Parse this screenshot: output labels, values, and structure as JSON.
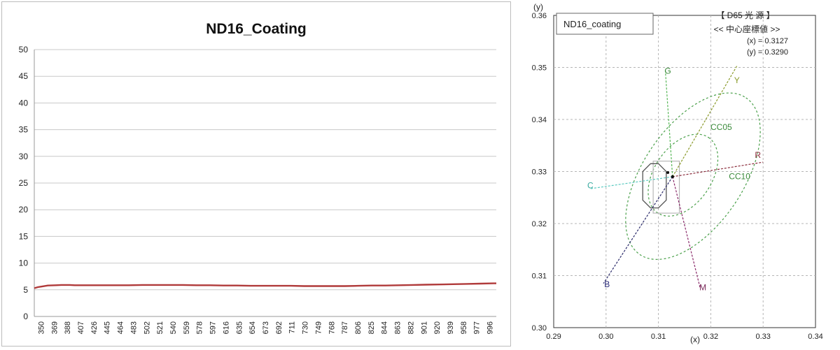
{
  "chart_data": [
    {
      "type": "line",
      "title": "ND16_Coating",
      "xlabel": "",
      "ylabel": "",
      "ylim": [
        0,
        50
      ],
      "yticks": [
        0,
        5,
        10,
        15,
        20,
        25,
        30,
        35,
        40,
        45,
        50
      ],
      "xticks": [
        "350",
        "369",
        "388",
        "407",
        "426",
        "445",
        "464",
        "483",
        "502",
        "521",
        "540",
        "559",
        "578",
        "597",
        "616",
        "635",
        "654",
        "673",
        "692",
        "711",
        "730",
        "749",
        "768",
        "787",
        "806",
        "825",
        "844",
        "863",
        "882",
        "901",
        "920",
        "939",
        "958",
        "977",
        "996"
      ],
      "grid": true,
      "series": [
        {
          "name": "",
          "color": "#b03a3a",
          "x": [
            350,
            355,
            360,
            369,
            380,
            388,
            400,
            407,
            426,
            445,
            464,
            483,
            502,
            521,
            540,
            559,
            578,
            597,
            616,
            635,
            654,
            673,
            692,
            711,
            730,
            749,
            768,
            787,
            806,
            825,
            844,
            863,
            882,
            901,
            920,
            939,
            958,
            977,
            996,
            1000
          ],
          "y": [
            5.3,
            5.5,
            5.6,
            5.8,
            5.85,
            5.9,
            5.9,
            5.85,
            5.85,
            5.85,
            5.85,
            5.85,
            5.9,
            5.9,
            5.9,
            5.9,
            5.85,
            5.85,
            5.8,
            5.8,
            5.75,
            5.75,
            5.75,
            5.75,
            5.7,
            5.7,
            5.7,
            5.7,
            5.75,
            5.8,
            5.8,
            5.85,
            5.9,
            5.95,
            6.0,
            6.05,
            6.1,
            6.15,
            6.2,
            6.2
          ]
        }
      ]
    },
    {
      "type": "scatter",
      "title": "",
      "legend_label": "ND16_coating",
      "xlabel": "(x)",
      "ylabel": "(y)",
      "xlim": [
        0.29,
        0.34
      ],
      "ylim": [
        0.3,
        0.36
      ],
      "xticks": [
        "0.29",
        "0.30",
        "0.31",
        "0.32",
        "0.33",
        "0.34"
      ],
      "yticks": [
        "0.30",
        "0.31",
        "0.32",
        "0.33",
        "0.34",
        "0.35",
        "0.36"
      ],
      "grid": true,
      "annotation": {
        "line1": "【 D65 光 源 】",
        "line2": "<< 中心座標値 >>",
        "line3": "(x) = 0.3127",
        "line4": "(y) = 0.3290"
      },
      "center": [
        0.3127,
        0.329
      ],
      "measured_point": [
        0.3118,
        0.3298
      ],
      "axes_labels": [
        {
          "text": "G",
          "x": 0.3118,
          "y": 0.3488,
          "color": "#3a8a3a"
        },
        {
          "text": "Y",
          "x": 0.325,
          "y": 0.347,
          "color": "#8a9a2a"
        },
        {
          "text": "CC05",
          "x": 0.322,
          "y": 0.338,
          "color": "#3a8a3a"
        },
        {
          "text": "R",
          "x": 0.329,
          "y": 0.3326,
          "color": "#8a2a3a"
        },
        {
          "text": "CC10",
          "x": 0.3255,
          "y": 0.3285,
          "color": "#3a8a3a"
        },
        {
          "text": "C",
          "x": 0.297,
          "y": 0.3268,
          "color": "#3aaaa0"
        },
        {
          "text": "B",
          "x": 0.3002,
          "y": 0.3078,
          "color": "#2a2a7a"
        },
        {
          "text": "M",
          "x": 0.3185,
          "y": 0.3072,
          "color": "#7a2a5a"
        }
      ],
      "direction_lines": [
        {
          "name": "G",
          "to": [
            0.3113,
            0.3497
          ],
          "color": "#5ab85a"
        },
        {
          "name": "Y",
          "to": [
            0.325,
            0.3503
          ],
          "color": "#8a9a2a"
        },
        {
          "name": "R",
          "to": [
            0.33,
            0.3318
          ],
          "color": "#8a2a3a"
        },
        {
          "name": "C",
          "to": [
            0.297,
            0.3267
          ],
          "color": "#5acac0"
        },
        {
          "name": "B",
          "to": [
            0.2995,
            0.3085
          ],
          "color": "#2a2a6a"
        },
        {
          "name": "M",
          "to": [
            0.318,
            0.3075
          ],
          "color": "#8a2a6a"
        }
      ],
      "ellipses": [
        {
          "name": "CC05",
          "cx": 0.3147,
          "cy": 0.3293,
          "rx": 0.0087,
          "ry": 0.0055,
          "angle": -56
        },
        {
          "name": "CC10",
          "cx": 0.3166,
          "cy": 0.3291,
          "rx": 0.0181,
          "ry": 0.0096,
          "angle": -56
        }
      ],
      "regions": [
        {
          "name": "tolerance-rectangle",
          "x1": 0.309,
          "x2": 0.314,
          "y1": 0.322,
          "y2": 0.332,
          "color": "#b8b8b8"
        },
        {
          "name": "tolerance-octagon",
          "points": [
            [
              0.3085,
              0.3315
            ],
            [
              0.31,
              0.3315
            ],
            [
              0.3115,
              0.33
            ],
            [
              0.3115,
              0.3245
            ],
            [
              0.31,
              0.323
            ],
            [
              0.3085,
              0.323
            ],
            [
              0.307,
              0.3245
            ],
            [
              0.307,
              0.33
            ]
          ],
          "color": "#555555"
        }
      ]
    }
  ]
}
